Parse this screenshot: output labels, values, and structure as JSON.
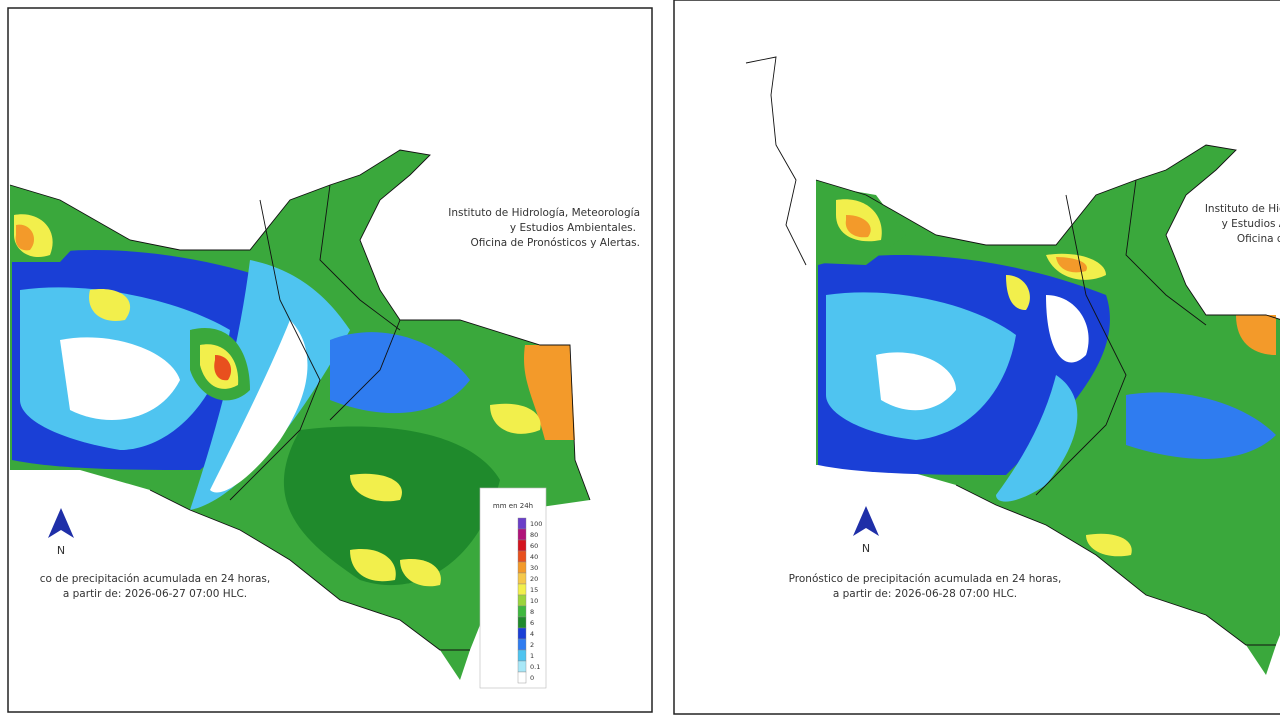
{
  "panels": [
    {
      "institution": [
        "Instituto de Hidrología, Meteorología",
        "y Estudios Ambientales.",
        "Oficina de Pronósticos y Alertas."
      ],
      "caption": [
        "co de precipitación acumulada en 24 horas,",
        "a partir de: 2026-06-27 07:00 HLC."
      ],
      "north": "N"
    },
    {
      "institution": [
        "Instituto de Hidr",
        "y Estudios A",
        "Oficina de"
      ],
      "caption": [
        "Pronóstico de precipitación acumulada en 24 horas,",
        "a partir de: 2026-06-28 07:00 HLC."
      ],
      "north": "N"
    }
  ],
  "legend": {
    "title": "mm en 24h",
    "labels": [
      "100",
      "80",
      "60",
      "40",
      "30",
      "20",
      "15",
      "10",
      "8",
      "6",
      "4",
      "2",
      "1",
      "0.1",
      "0"
    ],
    "colors": [
      "#6a3fc8",
      "#b0127a",
      "#d4141e",
      "#e8501e",
      "#f39a2a",
      "#f5c84a",
      "#f2ef4c",
      "#9bd43c",
      "#3fb83f",
      "#1f8a2c",
      "#1a3fd6",
      "#2f7cf0",
      "#4fc4f0",
      "#a8e8f8",
      "#ffffff"
    ]
  }
}
